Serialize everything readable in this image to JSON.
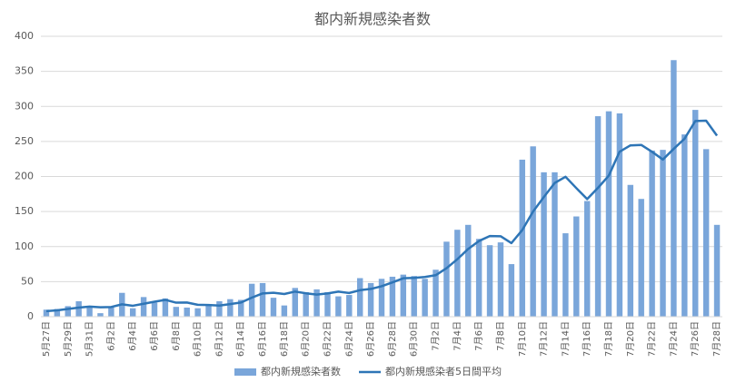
{
  "chart_data": {
    "type": "bar",
    "title": "都内新規感染者数",
    "categories": [
      "5月27日",
      null,
      "5月29日",
      null,
      "5月31日",
      null,
      "6月2日",
      null,
      "6月4日",
      null,
      "6月6日",
      null,
      "6月8日",
      null,
      "6月10日",
      null,
      "6月12日",
      null,
      "6月14日",
      null,
      "6月16日",
      null,
      "6月18日",
      null,
      "6月20日",
      null,
      "6月22日",
      null,
      "6月24日",
      null,
      "6月26日",
      null,
      "6月28日",
      null,
      "6月30日",
      null,
      "7月2日",
      null,
      "7月4日",
      null,
      "7月6日",
      null,
      "7月8日",
      null,
      "7月10日",
      null,
      "7月12日",
      null,
      "7月14日",
      null,
      "7月16日",
      null,
      "7月18日",
      null,
      "7月20日",
      null,
      "7月22日",
      null,
      "7月24日",
      null,
      "7月26日",
      null,
      "7月28日"
    ],
    "series": [
      {
        "name": "都内新規感染者数",
        "type": "bar",
        "color": "#7aa6da",
        "values": [
          10,
          11,
          15,
          22,
          14,
          5,
          13,
          34,
          12,
          28,
          20,
          26,
          14,
          13,
          12,
          18,
          22,
          25,
          24,
          47,
          48,
          27,
          16,
          41,
          35,
          39,
          35,
          29,
          31,
          55,
          48,
          54,
          57,
          60,
          58,
          54,
          67,
          107,
          124,
          131,
          111,
          102,
          106,
          75,
          224,
          243,
          206,
          206,
          119,
          143,
          165,
          286,
          293,
          290,
          188,
          168,
          237,
          238,
          366,
          260,
          295,
          239,
          131
        ]
      },
      {
        "name": "都内新規感染者5日間平均",
        "type": "line",
        "color": "#2e75b6",
        "values": [
          8,
          9,
          11,
          13,
          14.4,
          13.4,
          13.8,
          17.6,
          15.6,
          18.4,
          21.4,
          24,
          20,
          20.2,
          17,
          16.6,
          15.8,
          18,
          20.2,
          27.2,
          33.2,
          34.2,
          32.4,
          35.8,
          33.4,
          31.6,
          33.2,
          35.8,
          33.8,
          37.8,
          39.6,
          43.4,
          49,
          54.8,
          55.4,
          56.6,
          59.2,
          69.2,
          82,
          96.6,
          108,
          115,
          114.8,
          105,
          123.6,
          150,
          170.8,
          190.8,
          199.6,
          183.4,
          167.8,
          183.8,
          201.2,
          235.4,
          244.4,
          245,
          235.2,
          224.2,
          239.4,
          253.8,
          279.2,
          279.6,
          258.2
        ]
      }
    ],
    "ylim": [
      0,
      400
    ],
    "yticks": [
      0,
      50,
      100,
      150,
      200,
      250,
      300,
      350,
      400
    ],
    "grid": true,
    "legend": "bottom"
  }
}
